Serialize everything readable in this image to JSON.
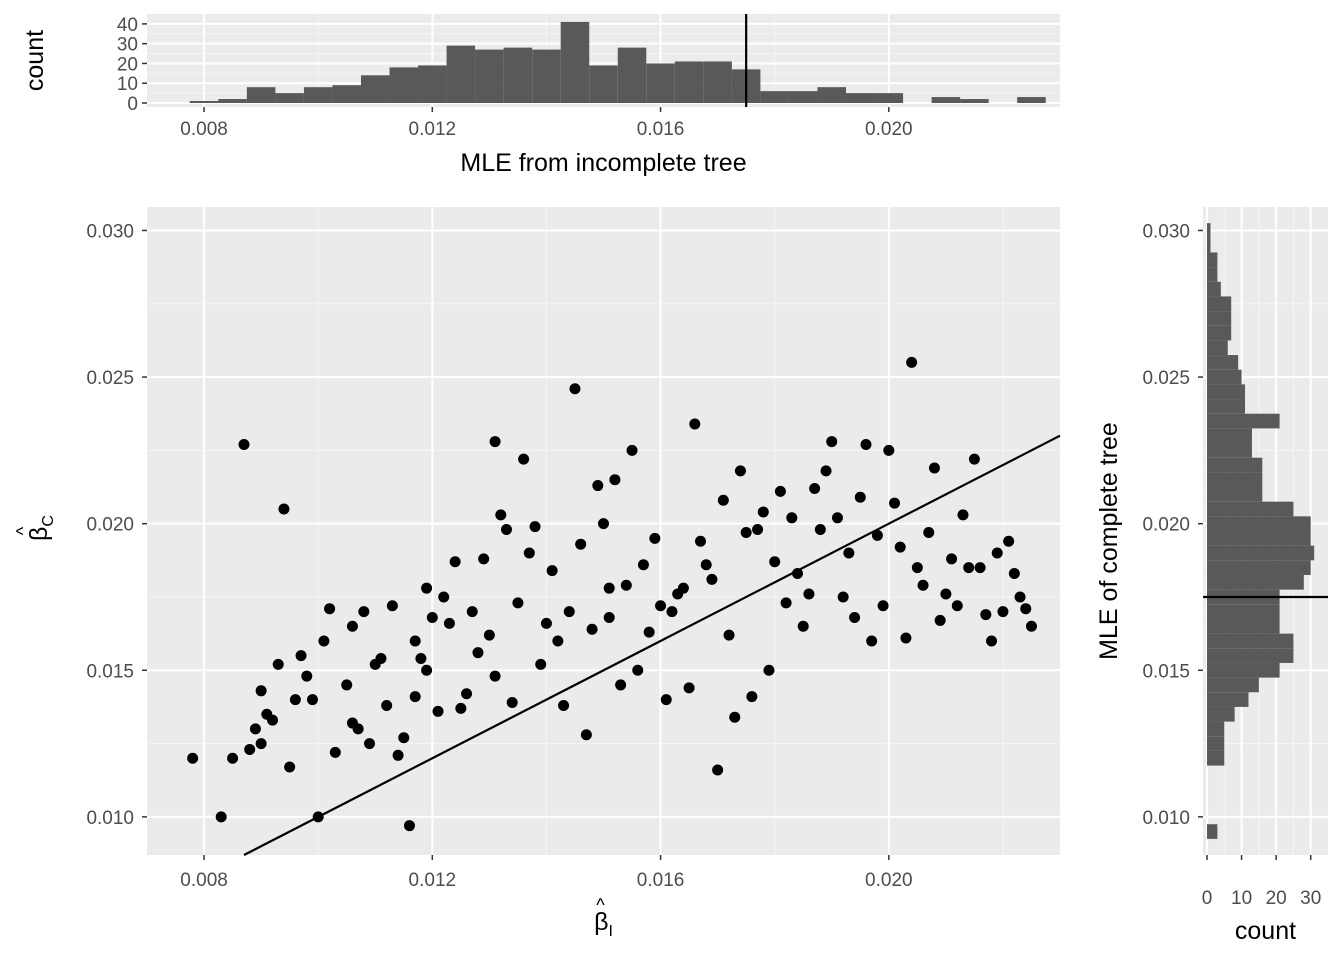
{
  "chart_data": [
    {
      "type": "bar",
      "panel": "top-histogram",
      "xlabel": "MLE from incomplete tree",
      "ylabel": "count",
      "xlim": [
        0.007,
        0.023
      ],
      "ylim": [
        0,
        45
      ],
      "xticks": [
        "0.008",
        "0.012",
        "0.016",
        "0.020"
      ],
      "xtick_values": [
        0.008,
        0.012,
        0.016,
        0.02
      ],
      "yticks": [
        "0",
        "10",
        "20",
        "30",
        "40"
      ],
      "ytick_values": [
        0,
        10,
        20,
        30,
        40
      ],
      "bin_width": 0.0005,
      "bin_starts": [
        0.00775,
        0.00825,
        0.00875,
        0.00925,
        0.00975,
        0.01025,
        0.01075,
        0.01125,
        0.01175,
        0.01225,
        0.01275,
        0.01325,
        0.01375,
        0.01425,
        0.01475,
        0.01525,
        0.01575,
        0.01625,
        0.01675,
        0.01725,
        0.01775,
        0.01825,
        0.01875,
        0.01925,
        0.01975,
        0.02025,
        0.02075,
        0.02125,
        0.02175,
        0.02225
      ],
      "values": [
        1,
        2,
        8,
        5,
        8,
        9,
        14,
        18,
        19,
        29,
        27,
        28,
        27,
        41,
        19,
        28,
        20,
        21,
        21,
        17,
        6,
        6,
        8,
        5,
        5,
        0,
        3,
        2,
        0,
        3
      ],
      "reference_line_x": 0.0175,
      "grid": true
    },
    {
      "type": "scatter",
      "panel": "main",
      "xlabel": "β̂I",
      "ylabel": "β̂C",
      "xlabel_parts": {
        "symbol": "β",
        "sub": "I"
      },
      "ylabel_parts": {
        "symbol": "β",
        "sub": "C"
      },
      "xlim": [
        0.007,
        0.023
      ],
      "ylim": [
        0.0087,
        0.0308
      ],
      "xticks": [
        "0.008",
        "0.012",
        "0.016",
        "0.020"
      ],
      "xtick_values": [
        0.008,
        0.012,
        0.016,
        0.02
      ],
      "yticks": [
        "0.010",
        "0.015",
        "0.020",
        "0.025",
        "0.030"
      ],
      "ytick_values": [
        0.01,
        0.015,
        0.02,
        0.025,
        0.03
      ],
      "reference_line": {
        "slope": 1,
        "intercept": 0
      },
      "grid": true,
      "points": [
        [
          0.0078,
          0.012
        ],
        [
          0.0083,
          0.01
        ],
        [
          0.0085,
          0.012
        ],
        [
          0.0087,
          0.0227
        ],
        [
          0.0088,
          0.0123
        ],
        [
          0.0089,
          0.013
        ],
        [
          0.009,
          0.0125
        ],
        [
          0.009,
          0.0143
        ],
        [
          0.0091,
          0.0135
        ],
        [
          0.0092,
          0.0133
        ],
        [
          0.0093,
          0.0152
        ],
        [
          0.0094,
          0.0205
        ],
        [
          0.0095,
          0.0117
        ],
        [
          0.0096,
          0.014
        ],
        [
          0.0097,
          0.0155
        ],
        [
          0.0098,
          0.0148
        ],
        [
          0.0099,
          0.014
        ],
        [
          0.01,
          0.01
        ],
        [
          0.0101,
          0.016
        ],
        [
          0.0102,
          0.0171
        ],
        [
          0.0103,
          0.0122
        ],
        [
          0.0105,
          0.0145
        ],
        [
          0.0106,
          0.0132
        ],
        [
          0.0106,
          0.0165
        ],
        [
          0.0107,
          0.013
        ],
        [
          0.0108,
          0.017
        ],
        [
          0.0109,
          0.0125
        ],
        [
          0.011,
          0.0152
        ],
        [
          0.0111,
          0.0154
        ],
        [
          0.0112,
          0.0138
        ],
        [
          0.0113,
          0.0172
        ],
        [
          0.0114,
          0.0121
        ],
        [
          0.0115,
          0.0127
        ],
        [
          0.0116,
          0.0097
        ],
        [
          0.0117,
          0.016
        ],
        [
          0.0117,
          0.0141
        ],
        [
          0.0118,
          0.0154
        ],
        [
          0.0119,
          0.0178
        ],
        [
          0.0119,
          0.015
        ],
        [
          0.012,
          0.0168
        ],
        [
          0.0121,
          0.0136
        ],
        [
          0.0122,
          0.0175
        ],
        [
          0.0123,
          0.0166
        ],
        [
          0.0124,
          0.0187
        ],
        [
          0.0125,
          0.0137
        ],
        [
          0.0126,
          0.0142
        ],
        [
          0.0127,
          0.017
        ],
        [
          0.0128,
          0.0156
        ],
        [
          0.0129,
          0.0188
        ],
        [
          0.013,
          0.0162
        ],
        [
          0.0131,
          0.0148
        ],
        [
          0.0131,
          0.0228
        ],
        [
          0.0132,
          0.0203
        ],
        [
          0.0133,
          0.0198
        ],
        [
          0.0134,
          0.0139
        ],
        [
          0.0135,
          0.0173
        ],
        [
          0.0136,
          0.0222
        ],
        [
          0.0137,
          0.019
        ],
        [
          0.0138,
          0.0199
        ],
        [
          0.0139,
          0.0152
        ],
        [
          0.014,
          0.0166
        ],
        [
          0.0141,
          0.0184
        ],
        [
          0.0142,
          0.016
        ],
        [
          0.0143,
          0.0138
        ],
        [
          0.0144,
          0.017
        ],
        [
          0.0145,
          0.0246
        ],
        [
          0.0146,
          0.0193
        ],
        [
          0.0147,
          0.0128
        ],
        [
          0.0148,
          0.0164
        ],
        [
          0.0149,
          0.0213
        ],
        [
          0.015,
          0.02
        ],
        [
          0.0151,
          0.0168
        ],
        [
          0.0151,
          0.0178
        ],
        [
          0.0152,
          0.0215
        ],
        [
          0.0153,
          0.0145
        ],
        [
          0.0154,
          0.0179
        ],
        [
          0.0155,
          0.0225
        ],
        [
          0.0156,
          0.015
        ],
        [
          0.0157,
          0.0186
        ],
        [
          0.0158,
          0.0163
        ],
        [
          0.0159,
          0.0195
        ],
        [
          0.016,
          0.0172
        ],
        [
          0.0161,
          0.014
        ],
        [
          0.0162,
          0.017
        ],
        [
          0.0163,
          0.0176
        ],
        [
          0.0164,
          0.0178
        ],
        [
          0.0165,
          0.0144
        ],
        [
          0.0166,
          0.0234
        ],
        [
          0.0167,
          0.0194
        ],
        [
          0.0168,
          0.0186
        ],
        [
          0.0169,
          0.0181
        ],
        [
          0.017,
          0.0116
        ],
        [
          0.0171,
          0.0208
        ],
        [
          0.0172,
          0.0162
        ],
        [
          0.0173,
          0.0134
        ],
        [
          0.0174,
          0.0218
        ],
        [
          0.0175,
          0.0197
        ],
        [
          0.0176,
          0.0141
        ],
        [
          0.0177,
          0.0198
        ],
        [
          0.0178,
          0.0204
        ],
        [
          0.0179,
          0.015
        ],
        [
          0.018,
          0.0187
        ],
        [
          0.0181,
          0.0211
        ],
        [
          0.0182,
          0.0173
        ],
        [
          0.0183,
          0.0202
        ],
        [
          0.0184,
          0.0183
        ],
        [
          0.0185,
          0.0165
        ],
        [
          0.0186,
          0.0176
        ],
        [
          0.0187,
          0.0212
        ],
        [
          0.0188,
          0.0198
        ],
        [
          0.0189,
          0.0218
        ],
        [
          0.019,
          0.0228
        ],
        [
          0.0191,
          0.0202
        ],
        [
          0.0192,
          0.0175
        ],
        [
          0.0193,
          0.019
        ],
        [
          0.0194,
          0.0168
        ],
        [
          0.0195,
          0.0209
        ],
        [
          0.0196,
          0.0227
        ],
        [
          0.0197,
          0.016
        ],
        [
          0.0198,
          0.0196
        ],
        [
          0.0199,
          0.0172
        ],
        [
          0.02,
          0.0225
        ],
        [
          0.0201,
          0.0207
        ],
        [
          0.0202,
          0.0192
        ],
        [
          0.0203,
          0.0161
        ],
        [
          0.0204,
          0.0255
        ],
        [
          0.0205,
          0.0185
        ],
        [
          0.0206,
          0.0179
        ],
        [
          0.0207,
          0.0197
        ],
        [
          0.0208,
          0.0219
        ],
        [
          0.0209,
          0.0167
        ],
        [
          0.021,
          0.0176
        ],
        [
          0.0211,
          0.0188
        ],
        [
          0.0212,
          0.0172
        ],
        [
          0.0213,
          0.0203
        ],
        [
          0.0214,
          0.0185
        ],
        [
          0.0215,
          0.0222
        ],
        [
          0.0216,
          0.0185
        ],
        [
          0.0217,
          0.0169
        ],
        [
          0.0218,
          0.016
        ],
        [
          0.0219,
          0.019
        ],
        [
          0.022,
          0.017
        ],
        [
          0.0221,
          0.0194
        ],
        [
          0.0222,
          0.0183
        ],
        [
          0.0223,
          0.0175
        ],
        [
          0.0224,
          0.0171
        ],
        [
          0.0225,
          0.0165
        ]
      ]
    },
    {
      "type": "bar",
      "panel": "right-histogram",
      "orientation": "horizontal",
      "xlabel": "count",
      "ylabel": "MLE of complete tree",
      "xlim": [
        0,
        35
      ],
      "ylim": [
        0.0087,
        0.0308
      ],
      "xticks": [
        "0",
        "10",
        "20",
        "30"
      ],
      "xtick_values": [
        0,
        10,
        20,
        30
      ],
      "yticks": [
        "0.010",
        "0.015",
        "0.020",
        "0.025",
        "0.030"
      ],
      "ytick_values": [
        0.01,
        0.015,
        0.02,
        0.025,
        0.03
      ],
      "bin_width": 0.0005,
      "bin_starts": [
        0.00925,
        0.00975,
        0.01025,
        0.01075,
        0.01125,
        0.01175,
        0.01225,
        0.01275,
        0.01325,
        0.01375,
        0.01425,
        0.01475,
        0.01525,
        0.01575,
        0.01625,
        0.01675,
        0.01725,
        0.01775,
        0.01825,
        0.01875,
        0.01925,
        0.01975,
        0.02025,
        0.02075,
        0.02125,
        0.02175,
        0.02225,
        0.02275,
        0.02325,
        0.02375,
        0.02425,
        0.02475,
        0.02525,
        0.02575,
        0.02625,
        0.02675,
        0.02725,
        0.02775,
        0.02825,
        0.02875,
        0.02925,
        0.02975
      ],
      "values": [
        3,
        0,
        0,
        0,
        0,
        5,
        5,
        5,
        8,
        12,
        15,
        21,
        25,
        25,
        21,
        21,
        21,
        28,
        30,
        31,
        30,
        30,
        25,
        16,
        16,
        16,
        13,
        13,
        21,
        11,
        11,
        10,
        9,
        6,
        7,
        7,
        7,
        4,
        3,
        3,
        1,
        1
      ],
      "reference_line_y": 0.0175,
      "grid": true
    }
  ]
}
